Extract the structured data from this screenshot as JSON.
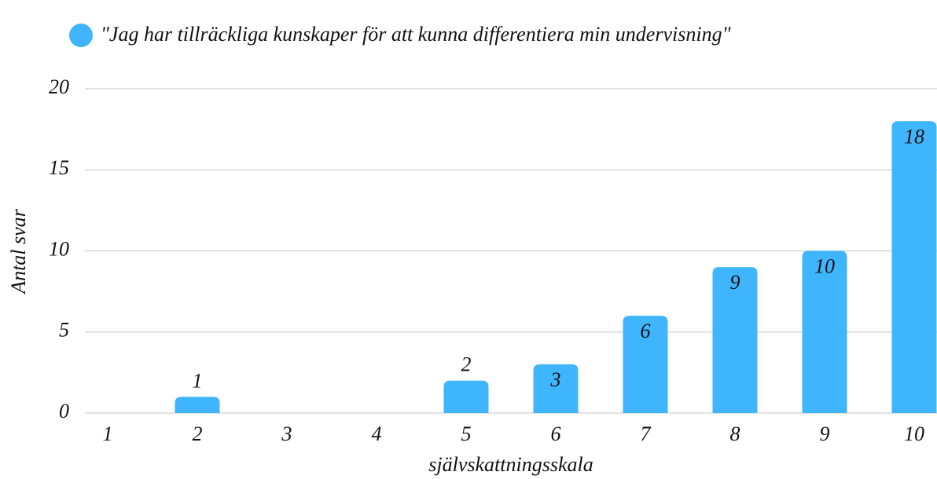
{
  "chart_data": {
    "type": "bar",
    "series": [
      {
        "name": "\"Jag har tillräckliga kunskaper för att kunna differentiera min undervisning\"",
        "color": "#3fb5fd",
        "values": [
          0,
          1,
          0,
          0,
          2,
          3,
          6,
          9,
          10,
          18
        ]
      }
    ],
    "categories": [
      "1",
      "2",
      "3",
      "4",
      "5",
      "6",
      "7",
      "8",
      "9",
      "10"
    ],
    "x_label": "självskattningsskala",
    "y_label": "Antal svar",
    "ylim": [
      0,
      20
    ],
    "yticks": [
      0,
      5,
      10,
      15,
      20
    ],
    "grid": true
  }
}
